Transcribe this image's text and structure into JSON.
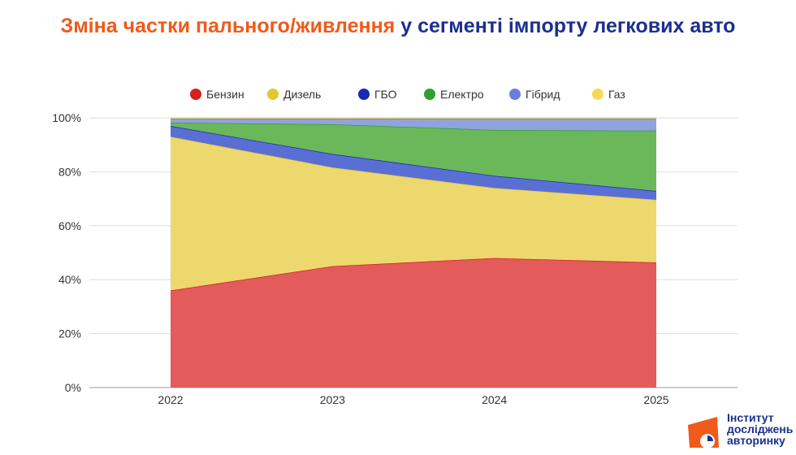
{
  "title_part1": "Зміна частки пального/живлення",
  "title_part2": "у сегменті імпорту легкових авто",
  "logo_text": [
    "Інститут",
    "досліджень",
    "авторинку"
  ],
  "chart_data": {
    "type": "area",
    "stacked": true,
    "categories": [
      "2022",
      "2023",
      "2024",
      "2025"
    ],
    "series": [
      {
        "name": "Бензин",
        "color": "#d32020",
        "fill": "#e35b5b",
        "values": [
          36,
          45,
          48,
          46.4
        ]
      },
      {
        "name": "Дизель",
        "color": "#e0c830",
        "fill": "#edd86e",
        "values": [
          57,
          36.6,
          26,
          23.2
        ]
      },
      {
        "name": "ГБО",
        "color": "#1a2ab0",
        "fill": "#5a6fd4",
        "values": [
          4,
          5,
          4.5,
          3.3
        ]
      },
      {
        "name": "Електро",
        "color": "#2ea02e",
        "fill": "#6bb85a",
        "values": [
          1.2,
          11,
          17,
          22.3
        ]
      },
      {
        "name": "Гібрид",
        "color": "#6a80d8",
        "fill": "#8fa3dd",
        "values": [
          1.5,
          2.1,
          4.2,
          4.5
        ]
      },
      {
        "name": "Газ",
        "color": "#f7d85a",
        "fill": "#f7d85a",
        "values": [
          0.3,
          0.3,
          0.3,
          0.3
        ]
      }
    ],
    "yticks": [
      "0%",
      "20%",
      "40%",
      "60%",
      "80%",
      "100%"
    ],
    "ylim": [
      0,
      100
    ],
    "grid": true,
    "legend": "top"
  }
}
